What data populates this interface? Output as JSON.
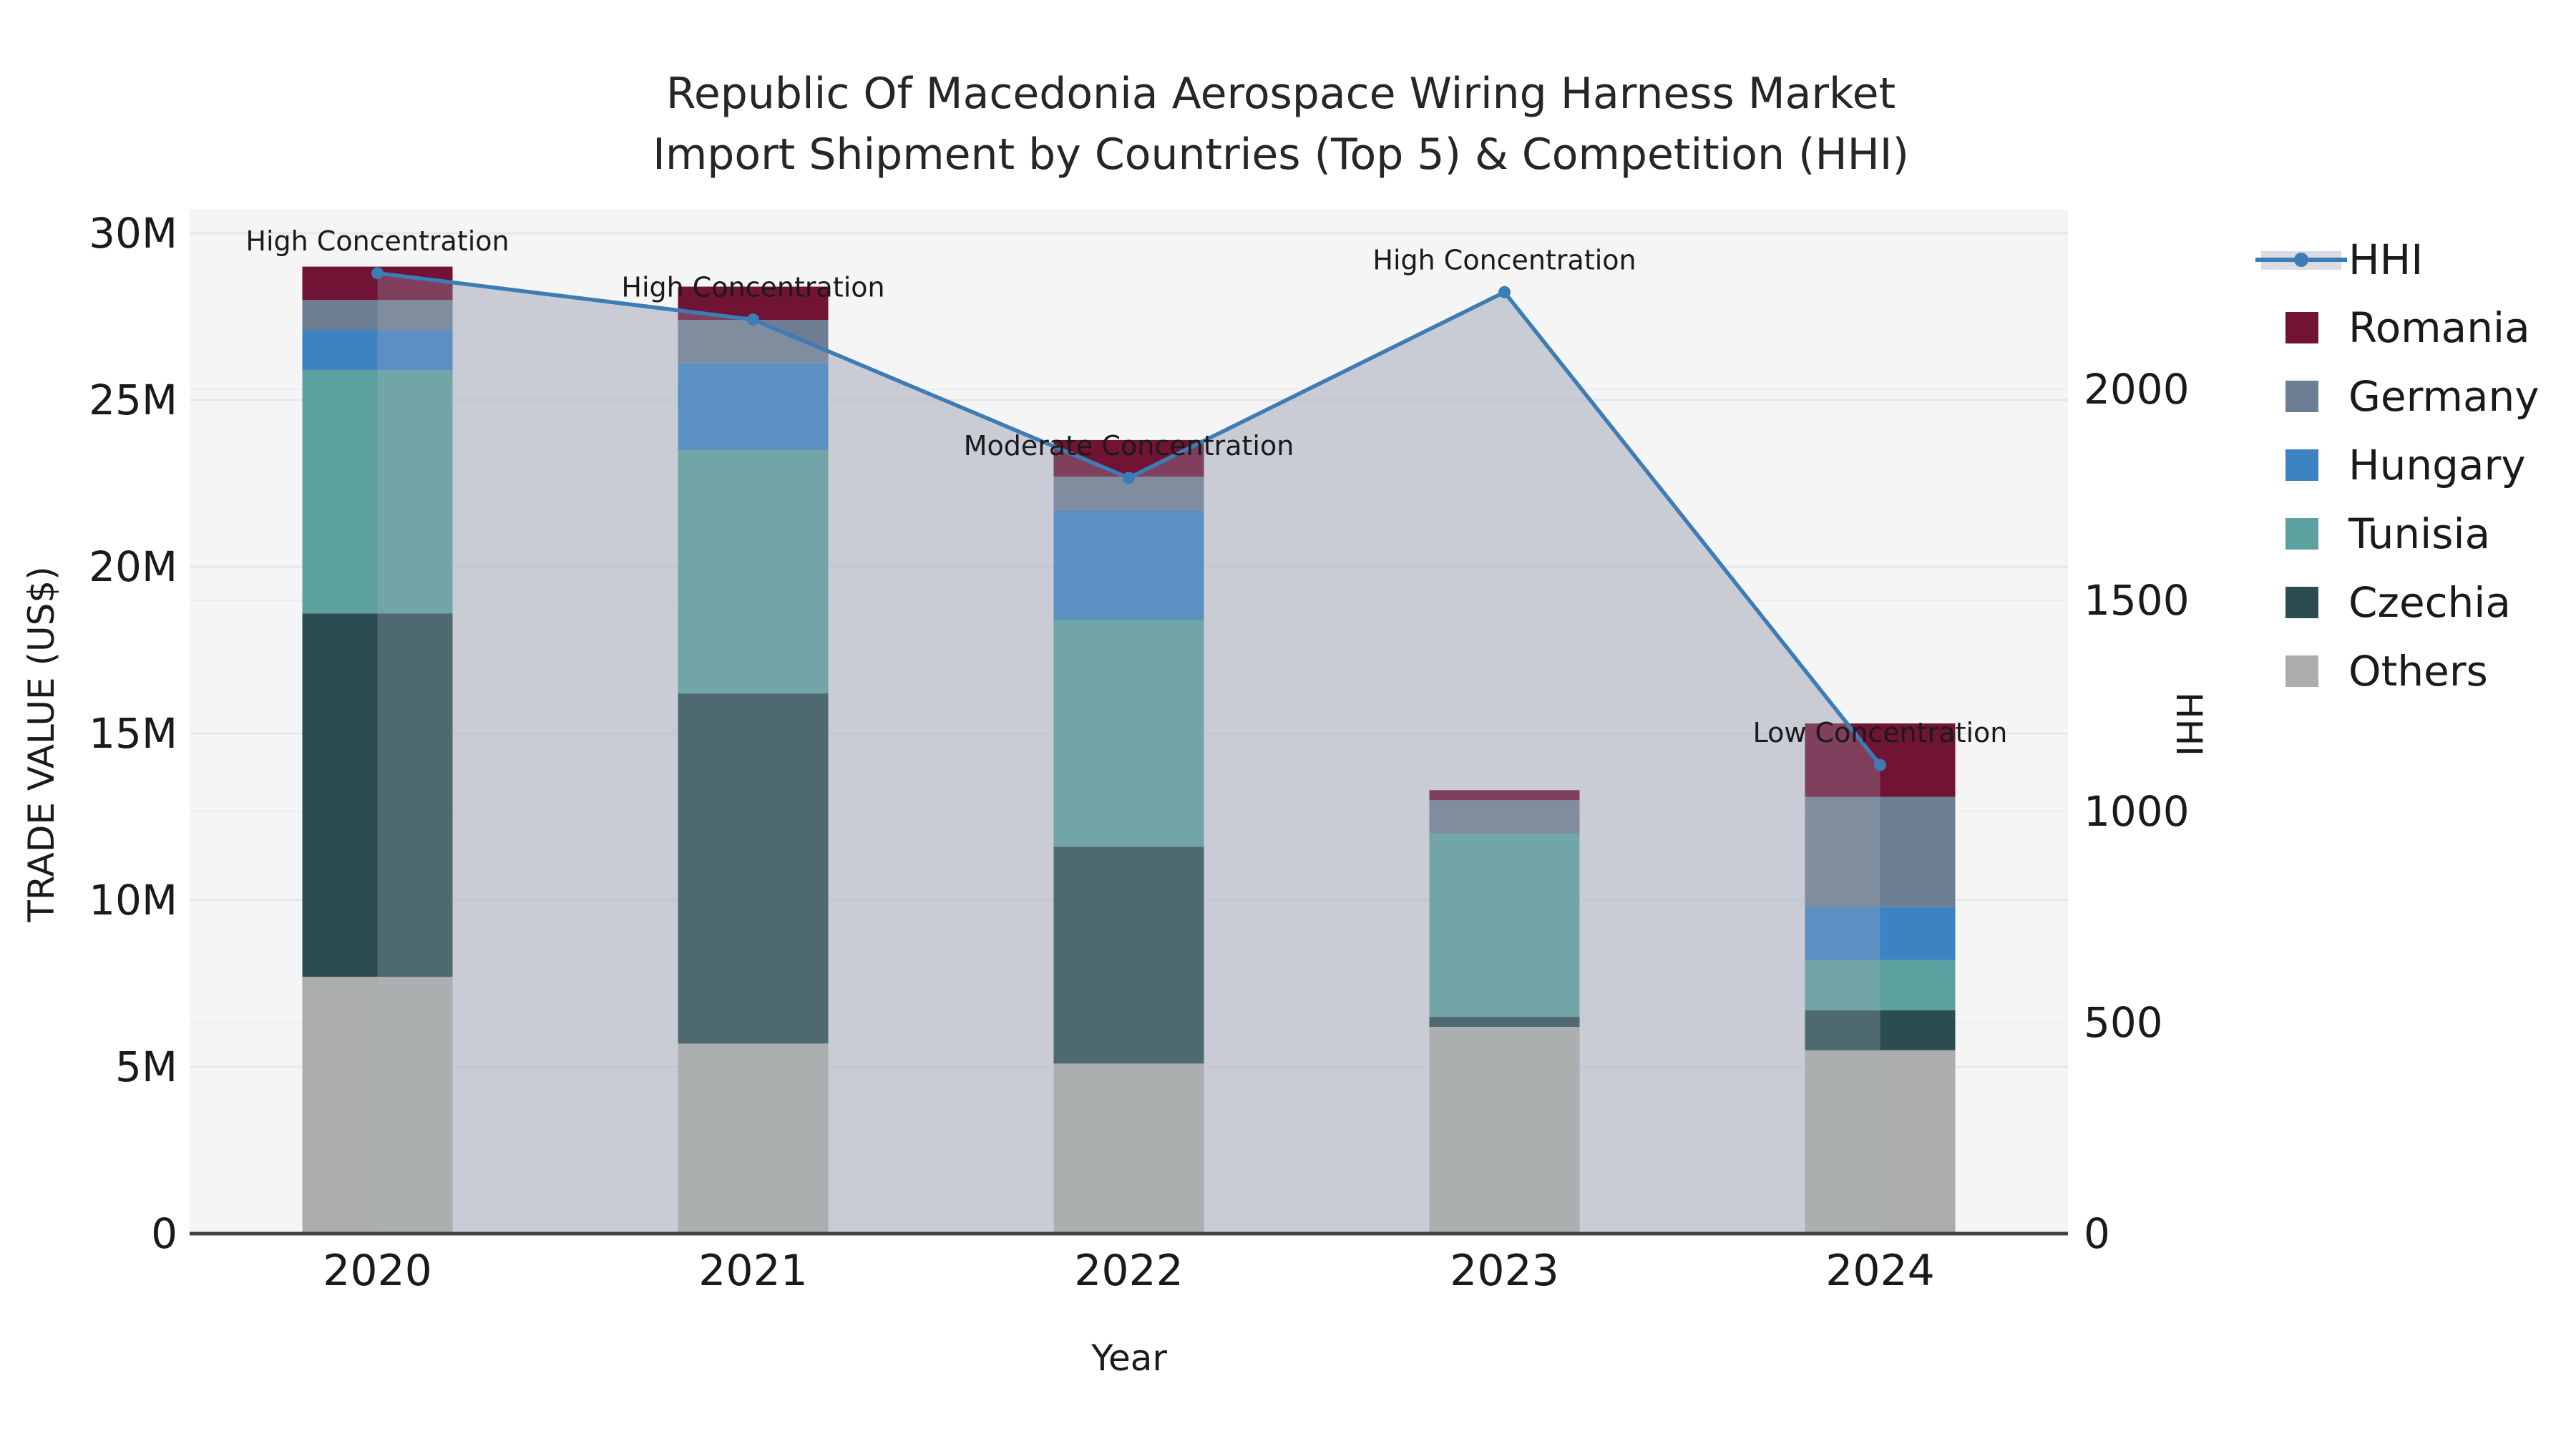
{
  "title": {
    "line1": "Republic Of Macedonia Aerospace Wiring Harness Market",
    "line2": "Import Shipment by Countries (Top 5) & Competition (HHI)"
  },
  "axes": {
    "left": {
      "title": "TRADE VALUE (US$)",
      "tick_labels": [
        "0",
        "5M",
        "10M",
        "15M",
        "20M",
        "25M",
        "30M"
      ],
      "tick_values_musd": [
        0,
        5,
        10,
        15,
        20,
        25,
        30
      ]
    },
    "right": {
      "title": "HHI",
      "tick_labels": [
        "0",
        "500",
        "1000",
        "1500",
        "2000"
      ],
      "tick_values": [
        0,
        500,
        1000,
        1500,
        2000
      ]
    },
    "x": {
      "title": "Year",
      "tick_labels": [
        "2020",
        "2021",
        "2022",
        "2023",
        "2024"
      ]
    }
  },
  "chart_data": {
    "type": "combo_stacked_bar_line",
    "categories": [
      "2020",
      "2021",
      "2022",
      "2023",
      "2024"
    ],
    "unit": "US$ millions",
    "series": [
      {
        "name": "Others",
        "values_musd": [
          7.7,
          5.7,
          5.1,
          6.2,
          5.5
        ]
      },
      {
        "name": "Czechia",
        "values_musd": [
          10.9,
          10.5,
          6.5,
          0.3,
          1.2
        ]
      },
      {
        "name": "Tunisia",
        "values_musd": [
          7.3,
          7.3,
          6.8,
          5.5,
          1.5
        ]
      },
      {
        "name": "Hungary",
        "values_musd": [
          1.2,
          2.6,
          3.3,
          0.0,
          1.6
        ]
      },
      {
        "name": "Germany",
        "values_musd": [
          0.9,
          1.3,
          1.0,
          1.0,
          3.3
        ]
      },
      {
        "name": "Romania",
        "values_musd": [
          1.0,
          1.0,
          1.1,
          0.3,
          2.2
        ]
      }
    ],
    "stack_totals_musd": [
      29.0,
      28.4,
      23.8,
      13.3,
      15.3
    ],
    "line_series": {
      "name": "HHI",
      "values": [
        2275,
        2165,
        1790,
        2230,
        1110
      ],
      "axis": "right"
    },
    "annotations": [
      {
        "category": "2020",
        "label": "High Concentration"
      },
      {
        "category": "2021",
        "label": "High Concentration"
      },
      {
        "category": "2022",
        "label": "Moderate Concentration"
      },
      {
        "category": "2023",
        "label": "High Concentration"
      },
      {
        "category": "2024",
        "label": "Low Concentration"
      }
    ],
    "ylim_left_musd": [
      0,
      30.7
    ],
    "ylim_right_hhi": [
      0,
      2425
    ],
    "grid": true,
    "legend_position": "right"
  },
  "legend": {
    "entries": [
      {
        "name": "HHI",
        "kind": "line"
      },
      {
        "name": "Romania",
        "kind": "swatch"
      },
      {
        "name": "Germany",
        "kind": "swatch"
      },
      {
        "name": "Hungary",
        "kind": "swatch"
      },
      {
        "name": "Tunisia",
        "kind": "swatch"
      },
      {
        "name": "Czechia",
        "kind": "swatch"
      },
      {
        "name": "Others",
        "kind": "swatch"
      }
    ]
  },
  "colors": {
    "Romania": "#701335",
    "Germany": "#6e7e92",
    "Hungary": "#3d83c2",
    "Tunisia": "#5ca09f",
    "Czechia": "#2b4d51",
    "Others": "#abadaa",
    "hhi_line": "#3d7cb4",
    "area_fill": "rgb(172,178,193)",
    "plot_background": "#f5f5f5",
    "gridline": "#e3e5e9",
    "gridline_secondary": "#ececef",
    "axis_line": "#424242",
    "text": "#1a1a1a",
    "legend_line_band": "#d9dce2"
  }
}
